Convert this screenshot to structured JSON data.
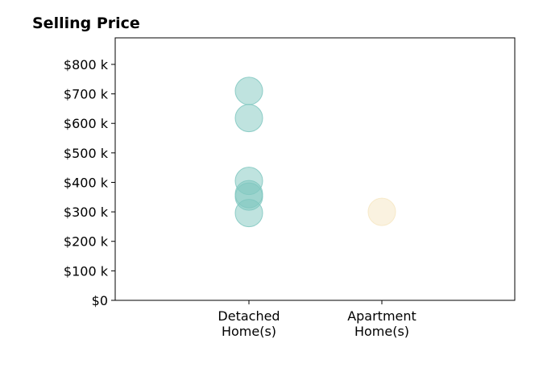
{
  "chart_data": {
    "type": "scatter",
    "title": "Selling Price",
    "categories": [
      "Detached\nHome(s)",
      "Apartment\nHome(s)"
    ],
    "series": [
      {
        "category": "Detached\nHome(s)",
        "color": "#7fc7bf",
        "values": [
          710,
          618,
          405,
          360,
          352,
          296
        ]
      },
      {
        "category": "Apartment\nHome(s)",
        "color": "#f6e6c2",
        "values": [
          300
        ]
      }
    ],
    "ylim": [
      0,
      890
    ],
    "yticks": [
      0,
      100,
      200,
      300,
      400,
      500,
      600,
      700,
      800
    ],
    "ytick_labels": [
      "$0",
      "$100 k",
      "$200 k",
      "$300 k",
      "$400 k",
      "$500 k",
      "$600 k",
      "$700 k",
      "$800 k"
    ],
    "xlabel": "",
    "ylabel": "",
    "grid": false,
    "legend": "none"
  }
}
